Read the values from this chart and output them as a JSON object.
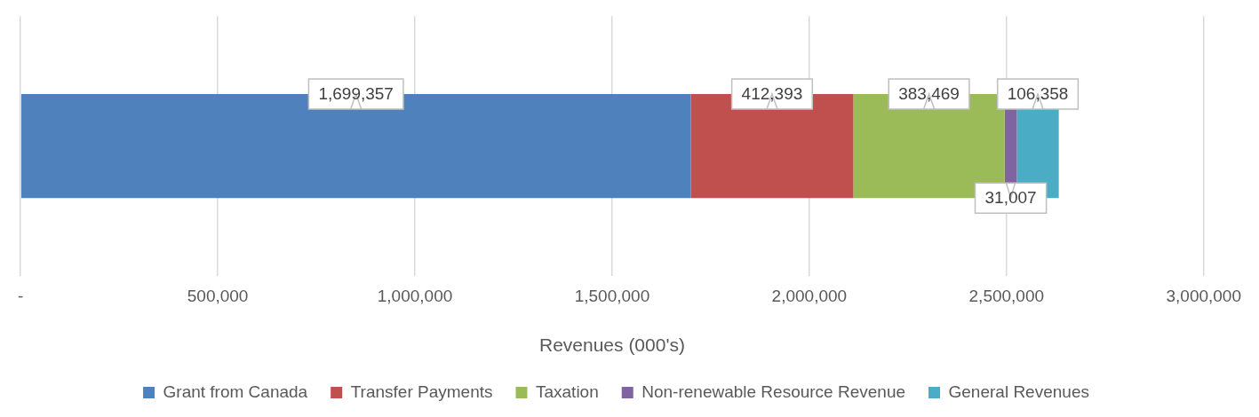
{
  "chart_data": {
    "type": "bar",
    "orientation": "horizontal",
    "stacked": true,
    "categories": [
      null
    ],
    "series": [
      {
        "name": "Grant from Canada",
        "color": "#4f81bd",
        "values": [
          1699357
        ],
        "value_labels": [
          "1,699,357"
        ]
      },
      {
        "name": "Transfer Payments",
        "color": "#c0504d",
        "values": [
          412393
        ],
        "value_labels": [
          "412,393"
        ]
      },
      {
        "name": "Taxation",
        "color": "#9bbb59",
        "values": [
          383469
        ],
        "value_labels": [
          "383,469"
        ]
      },
      {
        "name": "Non-renewable Resource Revenue",
        "color": "#8064a2",
        "values": [
          31007
        ],
        "value_labels": [
          "31,007"
        ]
      },
      {
        "name": "General Revenues",
        "color": "#4bacc6",
        "values": [
          106358
        ],
        "value_labels": [
          "106,358"
        ]
      }
    ],
    "xlim": [
      0,
      3000000
    ],
    "xticks": [
      {
        "value": 0,
        "label": "-"
      },
      {
        "value": 500000,
        "label": "500,000"
      },
      {
        "value": 1000000,
        "label": "1,000,000"
      },
      {
        "value": 1500000,
        "label": "1,500,000"
      },
      {
        "value": 2000000,
        "label": "2,000,000"
      },
      {
        "value": 2500000,
        "label": "2,500,000"
      },
      {
        "value": 3000000,
        "label": "3,000,000"
      }
    ],
    "xlabel": "Revenues (000's)",
    "grid": "x",
    "legend": "bottom"
  }
}
